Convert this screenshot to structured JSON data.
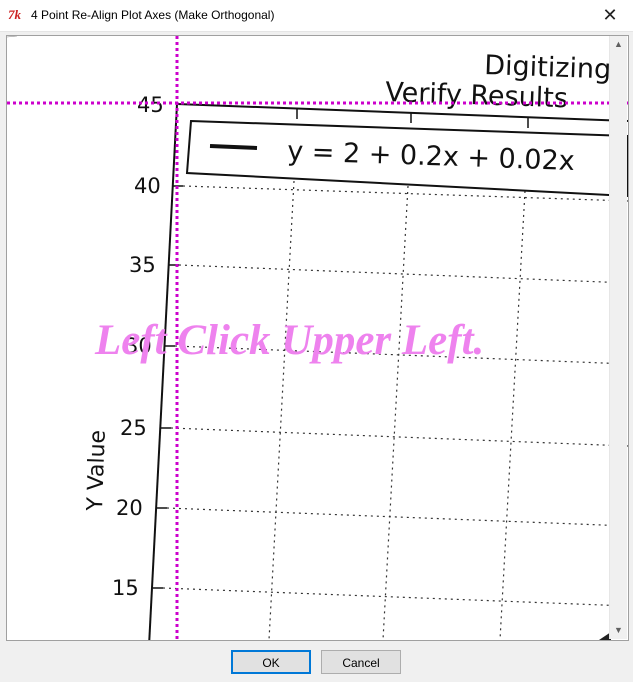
{
  "window": {
    "title": "4 Point Re-Align Plot Axes (Make Orthogonal)",
    "icon": "tk-feather-icon",
    "close_glyph": "✕"
  },
  "plot": {
    "title_line1": "Digitizing",
    "title_line2": "Verify Results",
    "legend_label": "y = 2 + 0.2x + 0.02x",
    "ylabel": "Y Value",
    "y_ticks": [
      "45",
      "40",
      "35",
      "30",
      "25",
      "20",
      "15"
    ]
  },
  "overlay": {
    "instruction": "Left Click Upper Left.",
    "crosshair_color": "#cc00cc",
    "text_color": "#ee82ee"
  },
  "scrollbar": {
    "up": "▲",
    "down": "▼"
  },
  "buttons": {
    "ok": "OK",
    "cancel": "Cancel"
  }
}
